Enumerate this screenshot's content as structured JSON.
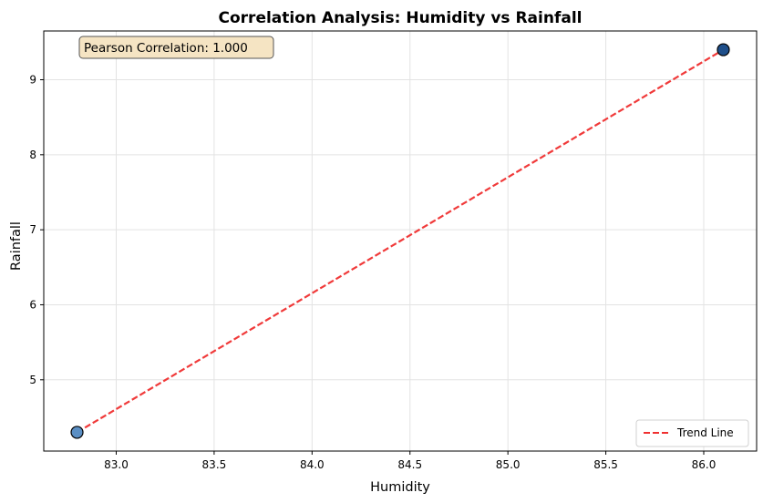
{
  "chart_data": {
    "type": "scatter",
    "title": "Correlation Analysis: Humidity vs Rainfall",
    "xlabel": "Humidity",
    "ylabel": "Rainfall",
    "xlim": [
      82.63,
      86.27
    ],
    "ylim": [
      4.05,
      9.65
    ],
    "x_ticks": [
      83.0,
      83.5,
      84.0,
      84.5,
      85.0,
      85.5,
      86.0
    ],
    "x_tick_labels": [
      "83.0",
      "83.5",
      "84.0",
      "84.5",
      "85.0",
      "85.5",
      "86.0"
    ],
    "y_ticks": [
      5,
      6,
      7,
      8,
      9
    ],
    "y_tick_labels": [
      "5",
      "6",
      "7",
      "8",
      "9"
    ],
    "grid": true,
    "points": [
      {
        "x": 82.8,
        "y": 4.3
      },
      {
        "x": 86.1,
        "y": 9.4
      }
    ],
    "trend_line": {
      "name": "Trend Line",
      "x": [
        82.8,
        86.1
      ],
      "y": [
        4.3,
        9.4
      ],
      "style": "dashed"
    },
    "annotation": "Pearson Correlation: 1.000",
    "legend": {
      "position": "lower-right",
      "entries": [
        "Trend Line"
      ]
    },
    "colors": {
      "point_fill": "#5b8fc4",
      "point_fill_dark": "#1f4f8a",
      "point_edge": "#000000",
      "trend": "#f03030",
      "grid": "#e3e3e3",
      "annot_bg": "#f5e4c3",
      "annot_edge": "#555555"
    }
  }
}
